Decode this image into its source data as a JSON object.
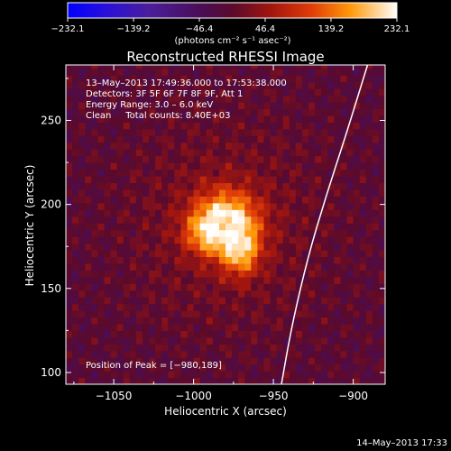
{
  "chart_data": {
    "type": "heatmap",
    "title": "Reconstructed RHESSI Image",
    "xlabel": "Heliocentric X (arcsec)",
    "ylabel": "Heliocentric Y (arcsec)",
    "xlim": [
      -1080,
      -880
    ],
    "ylim": [
      93,
      283
    ],
    "x_ticks": [
      -1050,
      -1000,
      -950,
      -900
    ],
    "x_tick_labels": [
      "−1050",
      "−1000",
      "−950",
      "−900"
    ],
    "y_ticks": [
      100,
      150,
      200,
      250
    ],
    "y_tick_labels": [
      "100",
      "150",
      "200",
      "250"
    ],
    "colorbar": {
      "min": -232.1,
      "max": 232.1,
      "ticks": [
        -232.1,
        -139.2,
        -46.4,
        46.4,
        139.2,
        232.1
      ],
      "tick_labels": [
        "−232.1",
        "−139.2",
        "−46.4",
        "46.4",
        "139.2",
        "232.1"
      ],
      "units_label": "(photons cm⁻² s⁻¹ asec⁻²)"
    },
    "info_lines": [
      "13–May–2013 17:49:36.000 to 17:53:38.000",
      "Detectors: 3F 5F 6F 7F 8F 9F, Att 1",
      "Energy Range: 3.0 – 6.0 keV",
      "Clean     Total counts: 8.40E+03"
    ],
    "peak_label": "Position of Peak = [−980,189]",
    "peak": [
      -980,
      189
    ],
    "peak_value": 232.1,
    "limb_points": [
      [
        -945,
        93
      ],
      [
        -938,
        130
      ],
      [
        -928,
        170
      ],
      [
        -917,
        205
      ],
      [
        -905,
        240
      ],
      [
        -891,
        283
      ]
    ],
    "timestamp": "14–May–2013 17:33"
  }
}
